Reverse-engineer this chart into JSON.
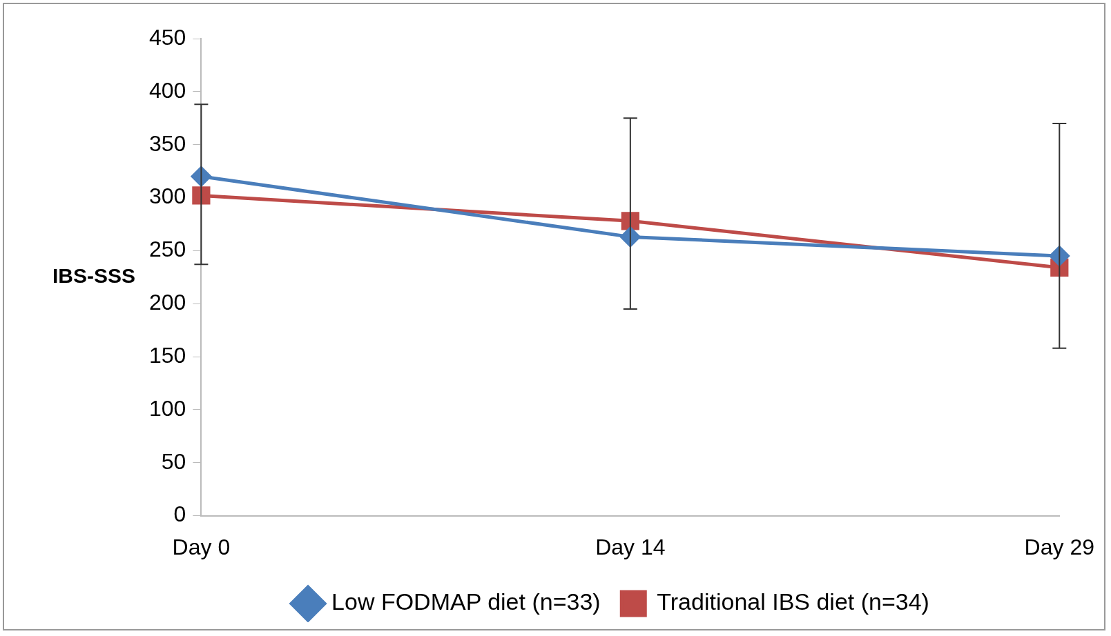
{
  "chart_data": {
    "type": "line",
    "ylabel": "IBS-SSS",
    "categories": [
      "Day 0",
      "Day 14",
      "Day 29"
    ],
    "series": [
      {
        "name": "Low FODMAP diet (n=33)",
        "color": "#4a7ebb",
        "values": [
          320,
          263,
          245
        ],
        "marker": "diamond",
        "errors": [
          [
            237,
            388
          ],
          [
            195,
            375
          ],
          [
            158,
            370
          ]
        ]
      },
      {
        "name": "Traditional IBS diet (n=34)",
        "color": "#be4b48",
        "values": [
          302,
          278,
          234
        ],
        "marker": "square"
      }
    ],
    "ylim": [
      0,
      450
    ],
    "yticks": [
      0,
      50,
      100,
      150,
      200,
      250,
      300,
      350,
      400,
      450
    ],
    "grid": false,
    "legend": "bottom"
  }
}
